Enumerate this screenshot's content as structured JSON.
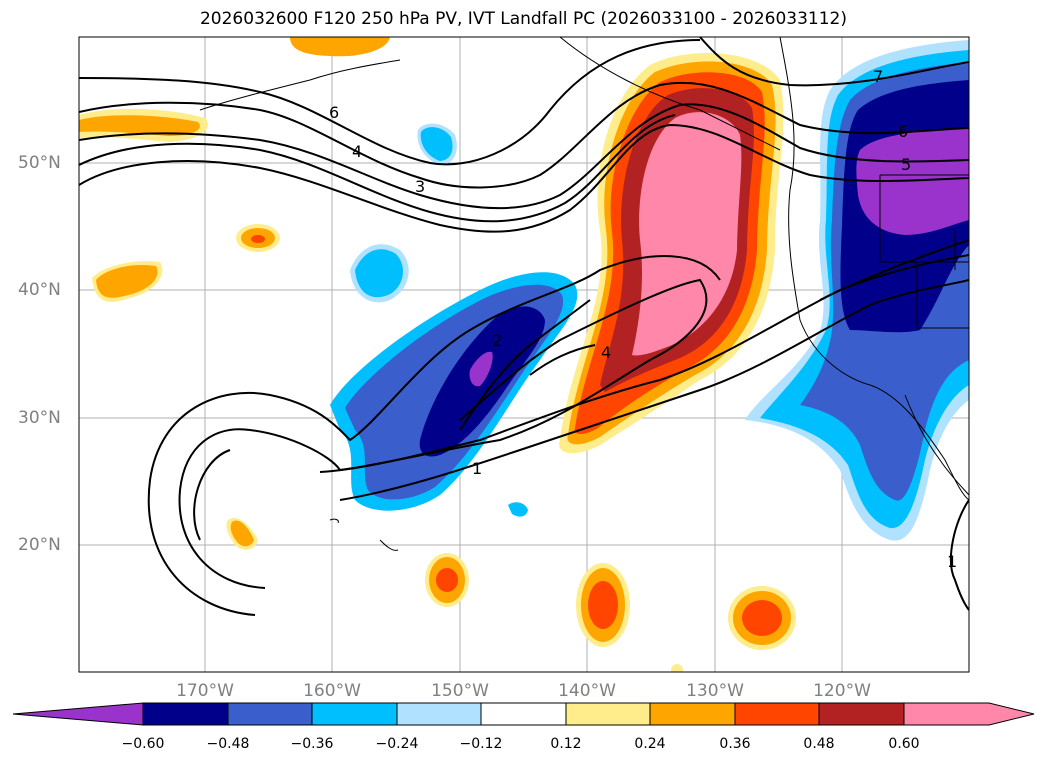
{
  "title": "2026032600 F120 250 hPa PV, IVT Landfall PC (2026033100 - 2026033112)",
  "lat_labels": [
    "50°N",
    "40°N",
    "30°N",
    "20°N"
  ],
  "lon_labels": [
    "170°W",
    "160°W",
    "150°W",
    "140°W",
    "130°W",
    "120°W"
  ],
  "pv_contour_labels": [
    "7",
    "6",
    "5",
    "6",
    "4",
    "3",
    "2",
    "4",
    "1",
    "1"
  ],
  "colorbar": {
    "tick_labels": [
      "−0.60",
      "−0.48",
      "−0.36",
      "−0.24",
      "−0.12",
      "0.12",
      "0.24",
      "0.36",
      "0.48",
      "0.60"
    ],
    "colors": [
      "#9933cc",
      "#00008b",
      "#3a5fcd",
      "#00bfff",
      "#b0e2ff",
      "#ffffff",
      "#ffec8b",
      "#ffa500",
      "#ff4500",
      "#b22222",
      "#ff88aa"
    ]
  }
}
